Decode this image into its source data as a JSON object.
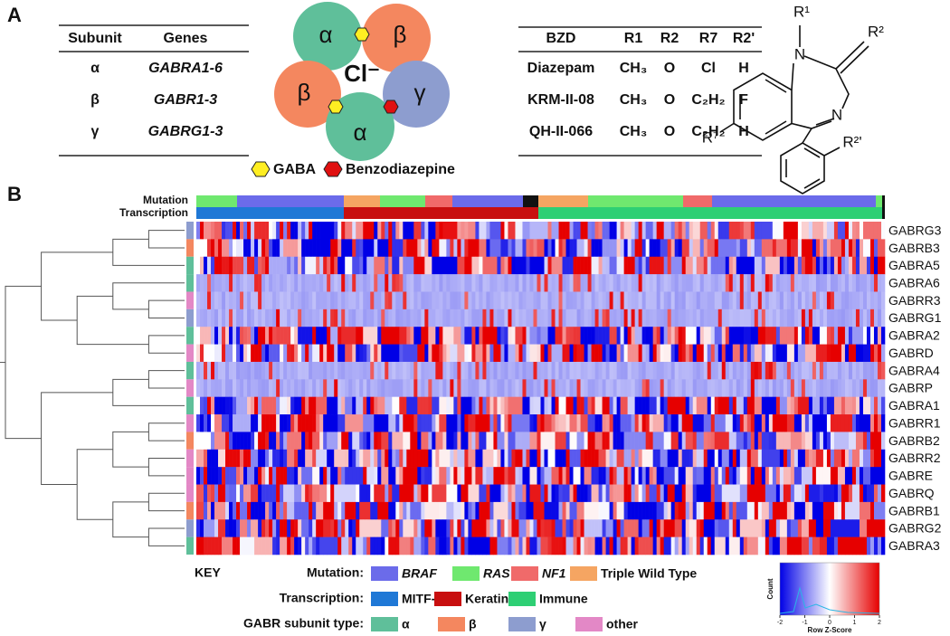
{
  "panel_a": {
    "label": "A",
    "subunit_table": {
      "header": [
        "Subunit",
        "Genes"
      ],
      "rows": [
        [
          "α",
          "GABRA1-6"
        ],
        [
          "β",
          "GABR1-3"
        ],
        [
          "γ",
          "GABRG1-3"
        ]
      ]
    },
    "receptor": {
      "subunits": [
        "α",
        "β",
        "β",
        "γ",
        "α"
      ],
      "ion": "Cl⁻",
      "legend": [
        "GABA",
        "Benzodiazepine"
      ]
    },
    "bzd_table": {
      "header": [
        "BZD",
        "R1",
        "R2",
        "R7",
        "R2'"
      ],
      "rows": [
        [
          "Diazepam",
          "CH₃",
          "O",
          "Cl",
          "H"
        ],
        [
          "KRM-II-08",
          "CH₃",
          "O",
          "C₂H₂",
          "F"
        ],
        [
          "QH-II-066",
          "CH₃",
          "O",
          "C₂H₂",
          "H"
        ]
      ]
    },
    "structure": {
      "labels": [
        "R¹",
        "R²",
        "R⁷",
        "R²'",
        "N",
        "N"
      ]
    }
  },
  "panel_b": {
    "label": "B",
    "track_labels": [
      "Mutation",
      "Transcription"
    ],
    "genes": [
      "GABRG3",
      "GABRB3",
      "GABRA5",
      "GABRA6",
      "GABRR3",
      "GABRG1",
      "GABRA2",
      "GABRD",
      "GABRA4",
      "GABRP",
      "GABRA1",
      "GABRR1",
      "GABRB2",
      "GABRR2",
      "GABRE",
      "GABRQ",
      "GABRB1",
      "GABRG2",
      "GABRA3"
    ],
    "key": {
      "title": "KEY",
      "mutation": {
        "label": "Mutation:",
        "items": [
          {
            "name": "BRAF",
            "color": "#6b6bea"
          },
          {
            "name": "RAS",
            "color": "#6fe86f"
          },
          {
            "name": "NF1",
            "color": "#f06a6a"
          },
          {
            "name": "Triple Wild Type",
            "color": "#f5a562"
          }
        ]
      },
      "transcription": {
        "label": "Transcription:",
        "items": [
          {
            "name": "MITF-low",
            "color": "#1f78d6"
          },
          {
            "name": "Keratin",
            "color": "#c80f0f"
          },
          {
            "name": "Immune",
            "color": "#2ecf74"
          }
        ]
      },
      "subunit_type": {
        "label": "GABR subunit type:",
        "items": [
          {
            "name": "α",
            "color": "#5fbf9a"
          },
          {
            "name": "β",
            "color": "#f4875f"
          },
          {
            "name": "γ",
            "color": "#8d9dcf"
          },
          {
            "name": "other",
            "color": "#e388c6"
          }
        ]
      }
    },
    "color_scale": {
      "ylabel": "Count",
      "xlabel": "Row Z-Score",
      "xticks": [
        -2,
        -1,
        0,
        1,
        2
      ]
    }
  }
}
